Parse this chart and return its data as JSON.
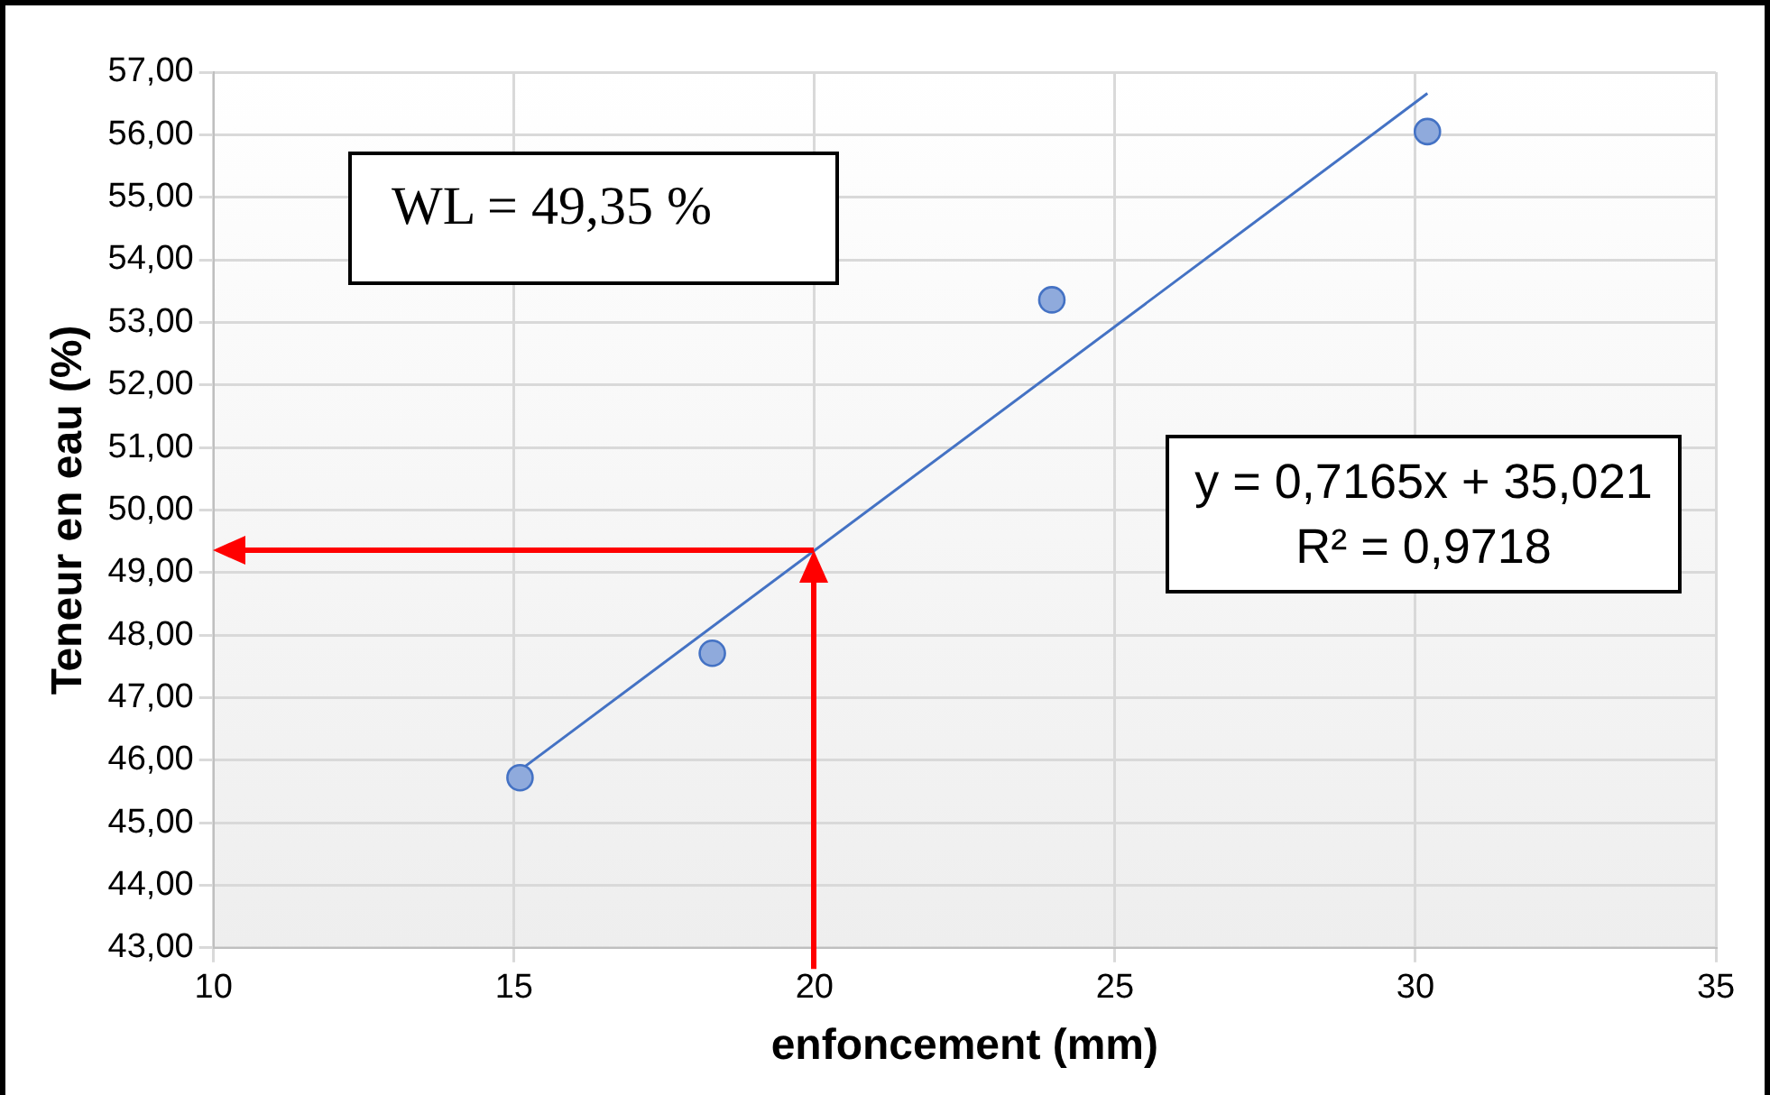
{
  "chart_data": {
    "type": "scatter",
    "xlabel": "enfoncement (mm)",
    "ylabel": "Teneur en eau (%)",
    "ref_lines": [
      {
        "axis": "x",
        "value": 20,
        "color": "#ff0000"
      },
      {
        "axis": "y",
        "value": 49.35,
        "color": "#ff0000"
      }
    ],
    "annotations": [
      "WL = 49,35 %",
      "y = 0,7165x + 35,021\nR² = 0,9718"
    ],
    "xlim": [
      10,
      35
    ],
    "xticks": [
      10,
      15,
      20,
      25,
      30,
      35
    ],
    "ylim": [
      43,
      57
    ],
    "yticks": [
      {
        "value": 43,
        "label": "43,00"
      },
      {
        "value": 44,
        "label": "44,00"
      },
      {
        "value": 45,
        "label": "45,00"
      },
      {
        "value": 46,
        "label": "46,00"
      },
      {
        "value": 47,
        "label": "47,00"
      },
      {
        "value": 48,
        "label": "48,00"
      },
      {
        "value": 49,
        "label": "49,00"
      },
      {
        "value": 50,
        "label": "50,00"
      },
      {
        "value": 51,
        "label": "51,00"
      },
      {
        "value": 52,
        "label": "52,00"
      },
      {
        "value": 53,
        "label": "53,00"
      },
      {
        "value": 54,
        "label": "54,00"
      },
      {
        "value": 55,
        "label": "55,00"
      },
      {
        "value": 56,
        "label": "56,00"
      },
      {
        "value": 57,
        "label": "57,00"
      }
    ],
    "grid": true,
    "legend": false,
    "series": [
      {
        "type": "scatter",
        "color": "#8faadc",
        "x": [
          15.1,
          18.3,
          23.95,
          30.2
        ],
        "values": [
          45.72,
          47.71,
          53.36,
          56.05
        ],
        "marker": "circle"
      },
      {
        "type": "line",
        "color": "#4472c4",
        "x": [
          15.1,
          30.2
        ],
        "values": [
          45.84,
          56.66
        ],
        "marker": "none"
      }
    ]
  }
}
